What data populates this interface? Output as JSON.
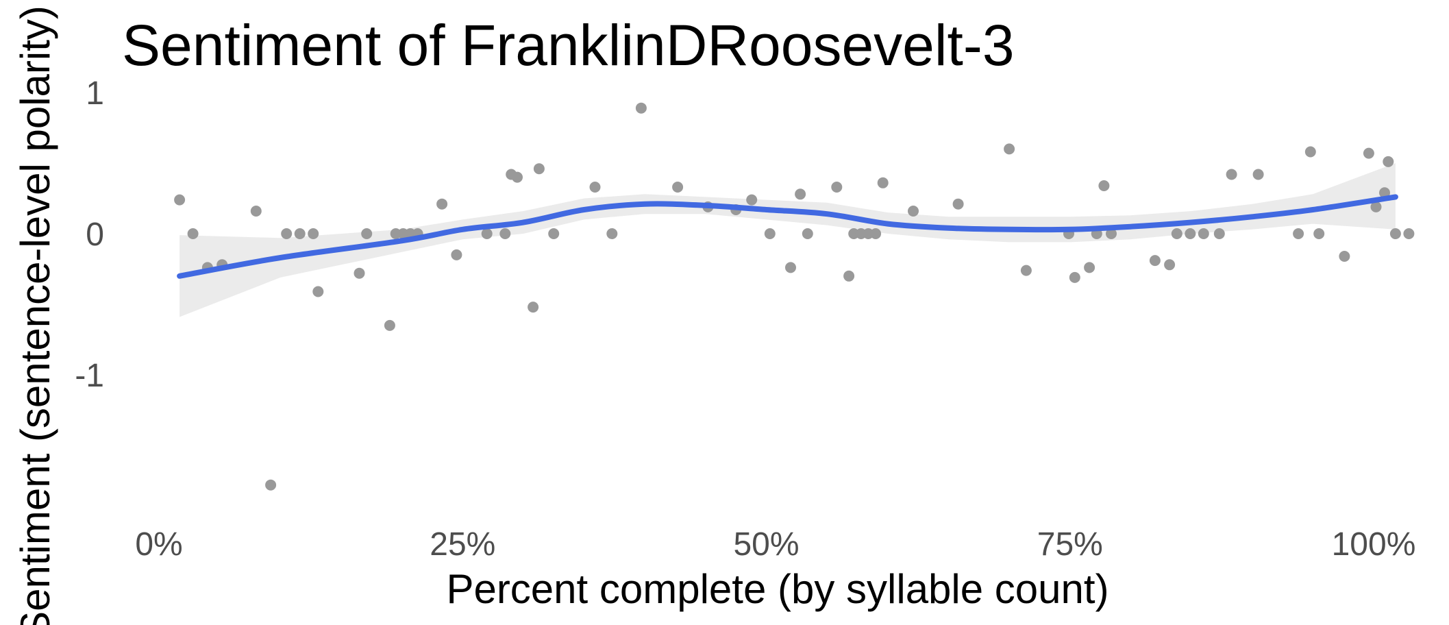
{
  "chart_data": {
    "type": "scatter",
    "title": "Sentiment of FranklinDRoosevelt-3",
    "xlabel": "Percent complete (by syllable count)",
    "ylabel": "Sentiment (sentence-level polarity)",
    "xlim": [
      0,
      1
    ],
    "ylim": [
      -2,
      1
    ],
    "x_ticks": [
      0,
      0.25,
      0.5,
      0.75,
      1
    ],
    "x_tick_labels": [
      "0%",
      "25%",
      "50%",
      "75%",
      "100%"
    ],
    "y_ticks": [
      1,
      0,
      -1
    ],
    "y_tick_labels": [
      "1",
      "0",
      "-1"
    ],
    "grid": false,
    "legend": "none",
    "colors": {
      "points": "#999999",
      "smooth_line": "#4169E1",
      "ribbon": "#EBEBEB"
    },
    "points": [
      {
        "x": 0.017,
        "y": 0.24
      },
      {
        "x": 0.028,
        "y": 0.0
      },
      {
        "x": 0.04,
        "y": -0.24
      },
      {
        "x": 0.052,
        "y": -0.22
      },
      {
        "x": 0.08,
        "y": 0.16
      },
      {
        "x": 0.092,
        "y": -1.78
      },
      {
        "x": 0.105,
        "y": 0.0
      },
      {
        "x": 0.116,
        "y": 0.0
      },
      {
        "x": 0.127,
        "y": 0.0
      },
      {
        "x": 0.131,
        "y": -0.41
      },
      {
        "x": 0.165,
        "y": -0.28
      },
      {
        "x": 0.171,
        "y": 0.0
      },
      {
        "x": 0.19,
        "y": -0.65
      },
      {
        "x": 0.195,
        "y": 0.0
      },
      {
        "x": 0.201,
        "y": 0.0
      },
      {
        "x": 0.207,
        "y": 0.0
      },
      {
        "x": 0.213,
        "y": 0.0
      },
      {
        "x": 0.233,
        "y": 0.21
      },
      {
        "x": 0.245,
        "y": -0.15
      },
      {
        "x": 0.27,
        "y": 0.0
      },
      {
        "x": 0.285,
        "y": 0.0
      },
      {
        "x": 0.29,
        "y": 0.42
      },
      {
        "x": 0.295,
        "y": 0.4
      },
      {
        "x": 0.308,
        "y": -0.52
      },
      {
        "x": 0.313,
        "y": 0.46
      },
      {
        "x": 0.325,
        "y": 0.0
      },
      {
        "x": 0.359,
        "y": 0.33
      },
      {
        "x": 0.373,
        "y": 0.0
      },
      {
        "x": 0.397,
        "y": 0.89
      },
      {
        "x": 0.427,
        "y": 0.33
      },
      {
        "x": 0.452,
        "y": 0.19
      },
      {
        "x": 0.475,
        "y": 0.17
      },
      {
        "x": 0.488,
        "y": 0.24
      },
      {
        "x": 0.503,
        "y": 0.0
      },
      {
        "x": 0.52,
        "y": -0.24
      },
      {
        "x": 0.528,
        "y": 0.28
      },
      {
        "x": 0.534,
        "y": 0.0
      },
      {
        "x": 0.558,
        "y": 0.33
      },
      {
        "x": 0.568,
        "y": -0.3
      },
      {
        "x": 0.572,
        "y": 0.0
      },
      {
        "x": 0.578,
        "y": 0.0
      },
      {
        "x": 0.584,
        "y": 0.0
      },
      {
        "x": 0.59,
        "y": 0.0
      },
      {
        "x": 0.596,
        "y": 0.36
      },
      {
        "x": 0.621,
        "y": 0.16
      },
      {
        "x": 0.658,
        "y": 0.21
      },
      {
        "x": 0.7,
        "y": 0.6
      },
      {
        "x": 0.714,
        "y": -0.26
      },
      {
        "x": 0.749,
        "y": 0.0
      },
      {
        "x": 0.754,
        "y": -0.31
      },
      {
        "x": 0.766,
        "y": -0.24
      },
      {
        "x": 0.772,
        "y": 0.0
      },
      {
        "x": 0.778,
        "y": 0.34
      },
      {
        "x": 0.784,
        "y": 0.0
      },
      {
        "x": 0.82,
        "y": -0.19
      },
      {
        "x": 0.832,
        "y": -0.22
      },
      {
        "x": 0.838,
        "y": 0.0
      },
      {
        "x": 0.849,
        "y": 0.0
      },
      {
        "x": 0.86,
        "y": 0.0
      },
      {
        "x": 0.873,
        "y": 0.0
      },
      {
        "x": 0.883,
        "y": 0.42
      },
      {
        "x": 0.905,
        "y": 0.42
      },
      {
        "x": 0.938,
        "y": 0.0
      },
      {
        "x": 0.948,
        "y": 0.58
      },
      {
        "x": 0.955,
        "y": 0.0
      },
      {
        "x": 0.976,
        "y": -0.16
      },
      {
        "x": 0.996,
        "y": 0.57
      },
      {
        "x": 1.002,
        "y": 0.19
      },
      {
        "x": 1.009,
        "y": 0.29
      },
      {
        "x": 1.012,
        "y": 0.51
      },
      {
        "x": 1.018,
        "y": 0.0
      },
      {
        "x": 1.029,
        "y": 0.0
      }
    ],
    "smooth": {
      "x": [
        0.017,
        0.1,
        0.2,
        0.25,
        0.3,
        0.35,
        0.4,
        0.45,
        0.5,
        0.55,
        0.6,
        0.65,
        0.7,
        0.75,
        0.8,
        0.85,
        0.9,
        0.95,
        1.018
      ],
      "y": [
        -0.3,
        -0.17,
        -0.05,
        0.03,
        0.08,
        0.17,
        0.21,
        0.2,
        0.17,
        0.14,
        0.07,
        0.04,
        0.03,
        0.03,
        0.05,
        0.08,
        0.12,
        0.17,
        0.26
      ],
      "lo": [
        -0.59,
        -0.31,
        -0.13,
        -0.04,
        0.0,
        0.1,
        0.14,
        0.14,
        0.1,
        0.06,
        0.0,
        -0.04,
        -0.06,
        -0.06,
        -0.04,
        0.0,
        0.03,
        0.07,
        0.03
      ],
      "hi": [
        -0.01,
        -0.03,
        0.03,
        0.1,
        0.16,
        0.25,
        0.28,
        0.26,
        0.24,
        0.22,
        0.15,
        0.12,
        0.12,
        0.12,
        0.13,
        0.16,
        0.21,
        0.28,
        0.5
      ]
    }
  }
}
